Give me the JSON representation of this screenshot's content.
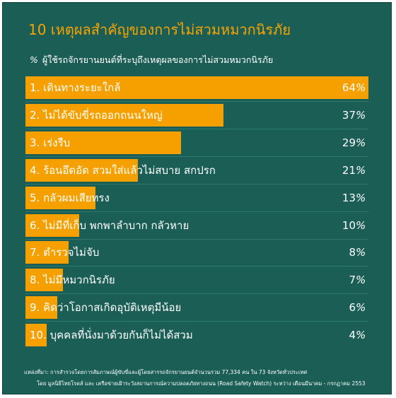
{
  "colors": {
    "background": "#1b5e56",
    "bar": "#f6a000",
    "title": "#f7a300",
    "text": "#ffffff"
  },
  "chart_data": {
    "type": "bar",
    "orientation": "horizontal",
    "title": "10 เหตุผลสำคัญของการไม่สวมหมวกนิรภัย",
    "subtitle_prefix": "%",
    "subtitle": "ผู้ใช้รถจักรยานยนต์ที่ระบุถึงเหตุผลของการไม่สวมหมวกนิรภัย",
    "unit": "%",
    "categories": [
      "1. เดินทางระยะใกล้",
      "2. ไม่ได้ขับขี่รถออกถนนใหญ่",
      "3. เร่งรีบ",
      "4. ร้อนอึดอัด สวมใส่แล้วไม่สบาย สกปรก",
      "5. กลัวผมเสียทรง",
      "6. ไม่มีที่เก็บ พกพาลำบาก กลัวหาย",
      "7. ตำรวจไม่จับ",
      "8. ไม่มีหมวกนิรภัย",
      "9. คิดว่าโอกาสเกิดอุบัติเหตุมีน้อย",
      "10. บุคคลที่นั่งมาด้วยกันก็ไม่ได้สวม"
    ],
    "values": [
      64,
      37,
      29,
      21,
      13,
      10,
      8,
      7,
      6,
      4
    ],
    "xlim": [
      0,
      64
    ]
  },
  "source": {
    "line1": "แหล่งที่มา: การสำรวจโดยการสัมภาษณ์ผู้ขับขี่และผู้โดยสารรถจักรยานยนต์จำนวนรวม 77,334 คน ใน 73 จังหวัดทั่วประเทศ",
    "line2": "โดย มูลนิธิไทยโรดส์ และ เครือข่ายเฝ้าระวังสถานการณ์ความปลอดภัยทางถนน (Road Safety Watch) ระหว่าง เดือนมีนาคม - กรกฎาคม 2553"
  }
}
